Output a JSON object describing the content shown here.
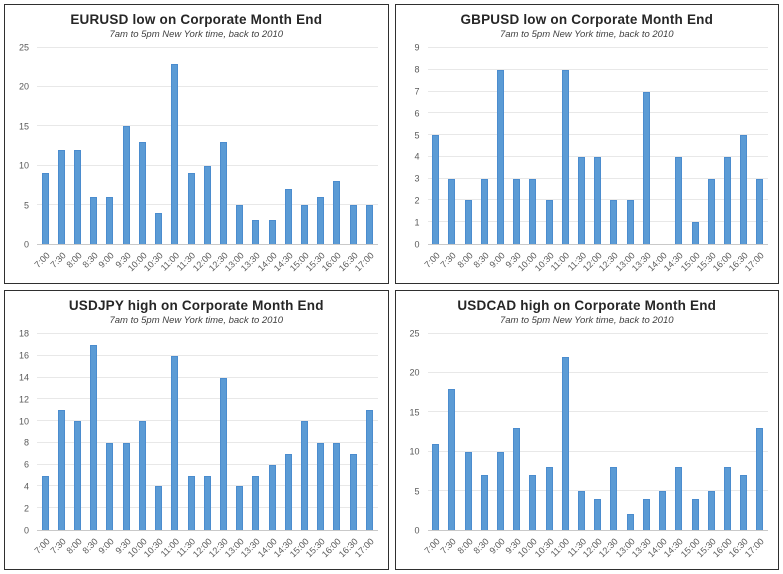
{
  "page": {
    "background": "#ffffff"
  },
  "colors": {
    "bar_fill": "#5b9bd5",
    "bar_border": "#4b8cce",
    "gridline": "#e8e8e8",
    "axis_line": "#c9c9c9",
    "title_text": "#262626",
    "subtitle_text": "#404040",
    "tick_text": "#595959",
    "panel_border": "#2f2f2f"
  },
  "chart_data": [
    {
      "type": "bar",
      "title": "EURUSD low on Corporate Month End",
      "subtitle": "7am to 5pm New York time, back to 2010",
      "xlabel": "",
      "ylabel": "",
      "categories": [
        "7:00",
        "7:30",
        "8:00",
        "8:30",
        "9:00",
        "9:30",
        "10:00",
        "10:30",
        "11:00",
        "11:30",
        "12:00",
        "12:30",
        "13:00",
        "13:30",
        "14:00",
        "14:30",
        "15:00",
        "15:30",
        "16:00",
        "16:30",
        "17:00"
      ],
      "values": [
        9,
        12,
        12,
        6,
        6,
        15,
        13,
        4,
        23,
        9,
        10,
        13,
        5,
        3,
        3,
        7,
        5,
        6,
        8,
        5,
        5
      ],
      "ylim": [
        0,
        25
      ],
      "ytick_step": 5,
      "grid": true,
      "legend": false
    },
    {
      "type": "bar",
      "title": "GBPUSD low on Corporate Month End",
      "subtitle": "7am to 5pm New York time, back to 2010",
      "xlabel": "",
      "ylabel": "",
      "categories": [
        "7:00",
        "7:30",
        "8:00",
        "8:30",
        "9:00",
        "9:30",
        "10:00",
        "10:30",
        "11:00",
        "11:30",
        "12:00",
        "12:30",
        "13:00",
        "13:30",
        "14:00",
        "14:30",
        "15:00",
        "15:30",
        "16:00",
        "16:30",
        "17:00"
      ],
      "values": [
        5,
        3,
        2,
        3,
        8,
        3,
        3,
        2,
        8,
        4,
        4,
        2,
        2,
        7,
        0,
        4,
        1,
        3,
        4,
        5,
        3
      ],
      "ylim": [
        0,
        9
      ],
      "ytick_step": 1,
      "grid": true,
      "legend": false
    },
    {
      "type": "bar",
      "title": "USDJPY high on Corporate Month End",
      "subtitle": "7am to 5pm New York time, back to 2010",
      "xlabel": "",
      "ylabel": "",
      "categories": [
        "7:00",
        "7:30",
        "8:00",
        "8:30",
        "9:00",
        "9:30",
        "10:00",
        "10:30",
        "11:00",
        "11:30",
        "12:00",
        "12:30",
        "13:00",
        "13:30",
        "14:00",
        "14:30",
        "15:00",
        "15:30",
        "16:00",
        "16:30",
        "17:00"
      ],
      "values": [
        5,
        11,
        10,
        17,
        8,
        8,
        10,
        4,
        16,
        5,
        5,
        14,
        4,
        5,
        6,
        7,
        10,
        8,
        8,
        7,
        11
      ],
      "ylim": [
        0,
        18
      ],
      "ytick_step": 2,
      "grid": true,
      "legend": false
    },
    {
      "type": "bar",
      "title": "USDCAD high on Corporate Month End",
      "subtitle": "7am to 5pm New York time, back to 2010",
      "xlabel": "",
      "ylabel": "",
      "categories": [
        "7:00",
        "7:30",
        "8:00",
        "8:30",
        "9:00",
        "9:30",
        "10:00",
        "10:30",
        "11:00",
        "11:30",
        "12:00",
        "12:30",
        "13:00",
        "13:30",
        "14:00",
        "14:30",
        "15:00",
        "15:30",
        "16:00",
        "16:30",
        "17:00"
      ],
      "values": [
        11,
        18,
        10,
        7,
        10,
        13,
        7,
        8,
        22,
        5,
        4,
        8,
        2,
        4,
        5,
        8,
        4,
        5,
        8,
        7,
        13
      ],
      "ylim": [
        0,
        25
      ],
      "ytick_step": 5,
      "grid": true,
      "legend": false
    }
  ]
}
